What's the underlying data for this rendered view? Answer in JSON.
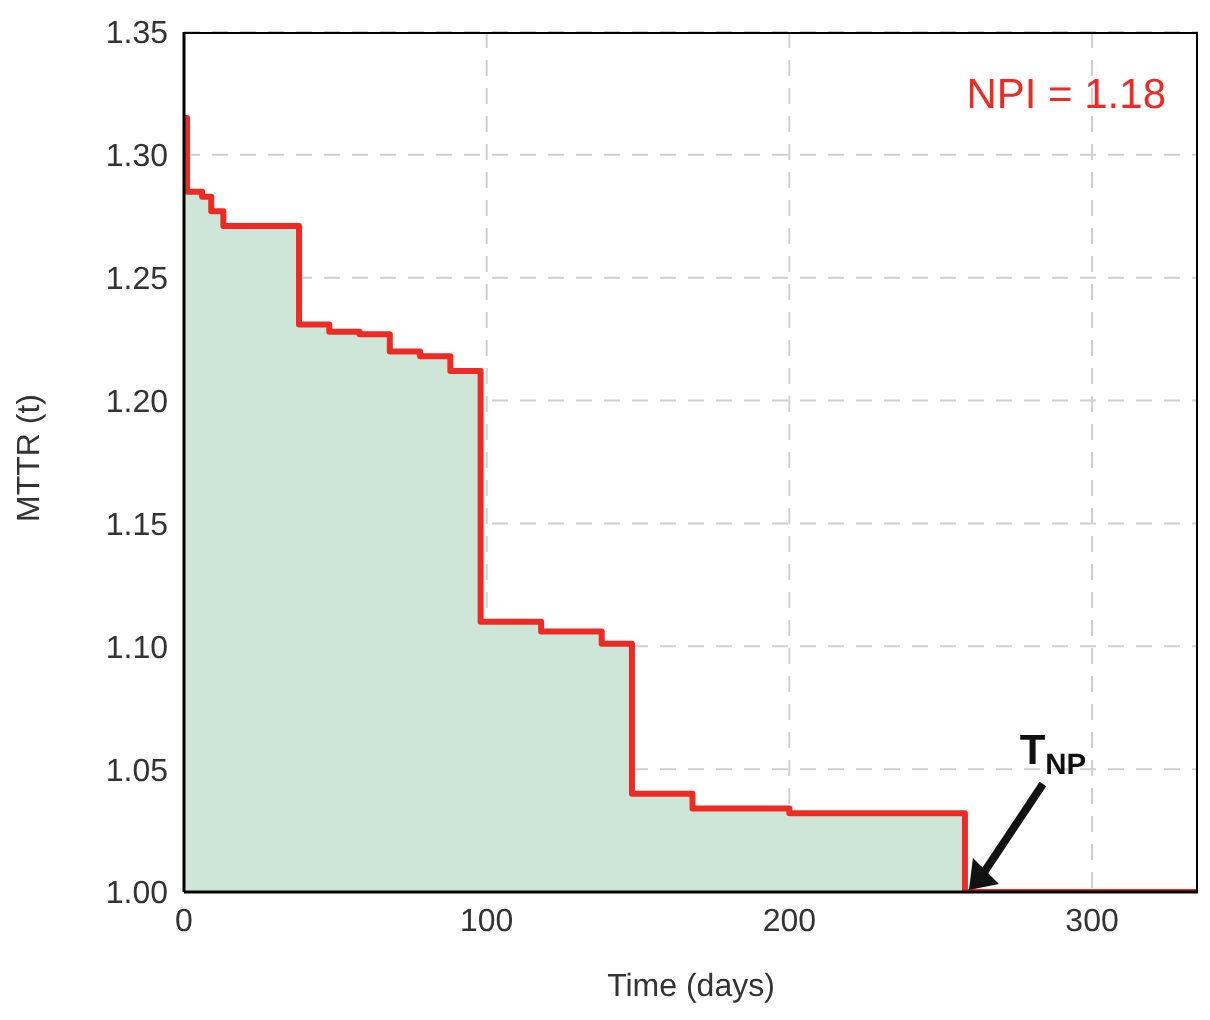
{
  "chart_data": {
    "type": "step",
    "xlabel": "Time (days)",
    "ylabel": "MTTR (t)",
    "x": [
      0,
      1,
      6,
      9,
      13,
      38,
      48,
      58,
      68,
      78,
      88,
      98,
      118,
      138,
      148,
      168,
      200,
      258,
      335
    ],
    "series": [
      {
        "color": "#ee2a24",
        "values": [
          1.315,
          1.285,
          1.283,
          1.277,
          1.271,
          1.231,
          1.228,
          1.227,
          1.22,
          1.218,
          1.212,
          1.11,
          1.106,
          1.101,
          1.04,
          1.034,
          1.032,
          1.0,
          1.0
        ]
      }
    ],
    "xlim": [
      0,
      335
    ],
    "xticks": [
      0,
      100,
      200,
      300
    ],
    "ylim": [
      1.0,
      1.35
    ],
    "yticks": [
      {
        "value": 1.0,
        "label": "1.00"
      },
      {
        "value": 1.05,
        "label": "1.05"
      },
      {
        "value": 1.1,
        "label": "1.10"
      },
      {
        "value": 1.15,
        "label": "1.15"
      },
      {
        "value": 1.2,
        "label": "1.20"
      },
      {
        "value": 1.25,
        "label": "1.25"
      },
      {
        "value": 1.3,
        "label": "1.30"
      },
      {
        "value": 1.35,
        "label": "1.35"
      }
    ],
    "grid": true,
    "line_style": "solid",
    "annotations": [
      "NPI = 1.18",
      {
        "text": "T$_{NP}$",
        "x": 258,
        "y": 1.0
      }
    ]
  }
}
